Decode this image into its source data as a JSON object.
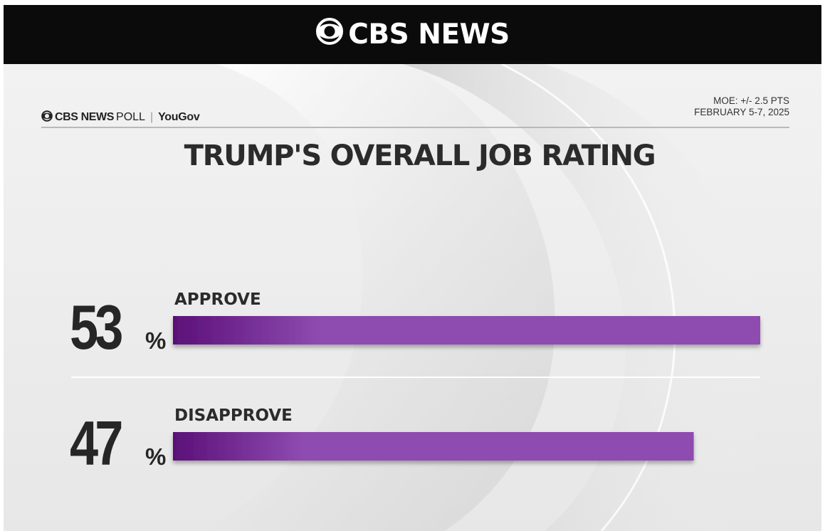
{
  "header": {
    "network_logo": "CBS NEWS"
  },
  "poll": {
    "brand": "CBS NEWS",
    "brand_suffix": "POLL",
    "partner": "YouGov",
    "moe": "MOE: +/- 2.5 PTS",
    "dates": "FEBRUARY 5-7, 2025"
  },
  "colors": {
    "bar_start": "#5b1078",
    "bar_end": "#8e4bb0",
    "topbar": "#0b0b0b",
    "text": "#2b2b2b"
  },
  "chart_data": {
    "type": "bar",
    "title": "TRUMP'S OVERALL JOB RATING",
    "categories": [
      "APPROVE",
      "DISAPPROVE"
    ],
    "values": [
      53,
      47
    ],
    "value_labels": [
      "53",
      "47"
    ],
    "unit": "%",
    "orientation": "horizontal",
    "xlim": [
      0,
      53
    ]
  }
}
